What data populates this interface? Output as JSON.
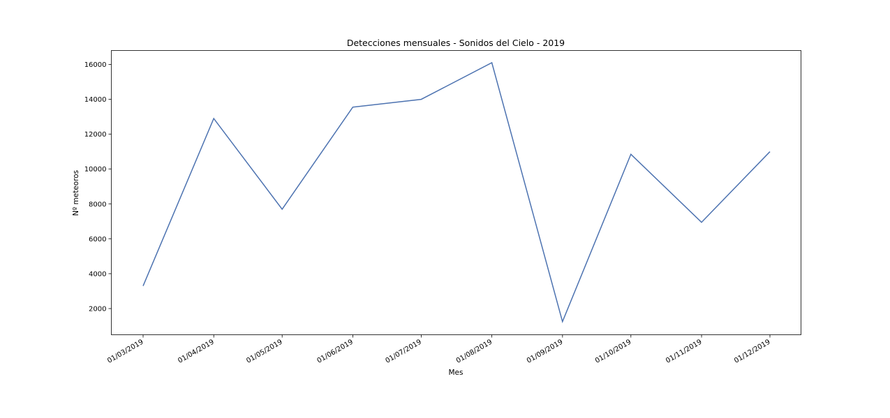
{
  "chart_data": {
    "type": "line",
    "title": "Detecciones mensuales - Sonidos del Cielo - 2019",
    "xlabel": "Mes",
    "ylabel": "Nº meteoros",
    "categories": [
      "01/03/2019",
      "01/04/2019",
      "01/05/2019",
      "01/06/2019",
      "01/07/2019",
      "01/08/2019",
      "01/09/2019",
      "01/10/2019",
      "01/11/2019",
      "01/12/2019"
    ],
    "x_dates": [
      "2019-03-01",
      "2019-04-01",
      "2019-05-01",
      "2019-06-01",
      "2019-07-01",
      "2019-08-01",
      "2019-09-01",
      "2019-10-01",
      "2019-11-01",
      "2019-12-01"
    ],
    "series": [
      {
        "values": [
          3300,
          12900,
          7700,
          13550,
          14000,
          16100,
          1250,
          10850,
          6950,
          11000
        ]
      }
    ],
    "ylim": [
      500,
      16800
    ],
    "yticks": [
      2000,
      4000,
      6000,
      8000,
      10000,
      12000,
      14000,
      16000
    ],
    "grid": false,
    "line_color": "#4c72b0"
  }
}
